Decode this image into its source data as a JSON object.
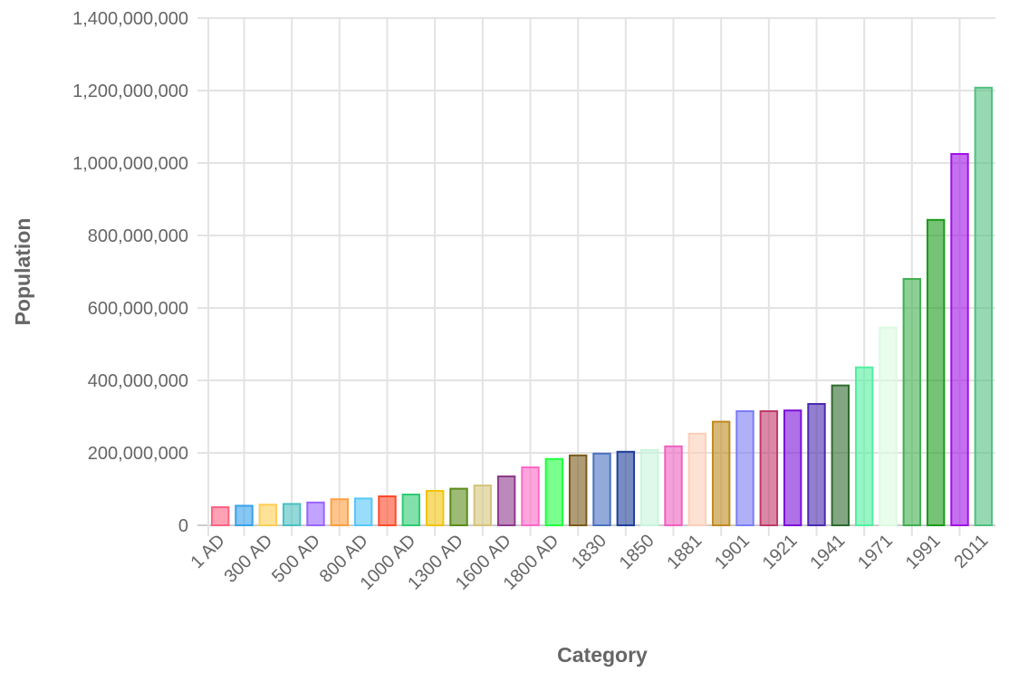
{
  "chart_data": {
    "type": "bar",
    "title": "",
    "xlabel": "Category",
    "ylabel": "Population",
    "ylim": [
      0,
      1400000000
    ],
    "y_ticks": [
      "0",
      "200,000,000",
      "400,000,000",
      "600,000,000",
      "800,000,000",
      "1,000,000,000",
      "1,200,000,000",
      "1,400,000,000"
    ],
    "y_tick_values": [
      0,
      200000000,
      400000000,
      600000000,
      800000000,
      1000000000,
      1200000000,
      1400000000
    ],
    "grid": true,
    "legend": "none",
    "categories": [
      "1 AD",
      "",
      "300 AD",
      "",
      "500 AD",
      "",
      "800 AD",
      "",
      "1000 AD",
      "",
      "1300 AD",
      "",
      "1600 AD",
      "",
      "1800 AD",
      "",
      "1830",
      "",
      "1850",
      "",
      "1881",
      "",
      "1901",
      "",
      "1921",
      "",
      "1941",
      "",
      "1971",
      "",
      "1991",
      "",
      "2011"
    ],
    "values": [
      50000000,
      54000000,
      57000000,
      59000000,
      63000000,
      72000000,
      74000000,
      80000000,
      85000000,
      95000000,
      101000000,
      110000000,
      135000000,
      160000000,
      183000000,
      193000000,
      198000000,
      203000000,
      208000000,
      218000000,
      253000000,
      286000000,
      315000000,
      315000000,
      317000000,
      335000000,
      386000000,
      436000000,
      546000000,
      680000000,
      843000000,
      1025000000,
      1208000000
    ],
    "colors": [
      "#ff6384",
      "#36a2eb",
      "#ffce56",
      "#4bc0c0",
      "#9966ff",
      "#ff9f40",
      "#57c7f7",
      "#ff4a2a",
      "#2ecc71",
      "#f1c40f",
      "#5b8c1a",
      "#d4c47c",
      "#8e3a8c",
      "#ff69c8",
      "#20ff40",
      "#7a5a1a",
      "#4a72c0",
      "#1f3f9a",
      "#c8f5dc",
      "#f060c0",
      "#fbcfb8",
      "#c08a20",
      "#7c7cf5",
      "#c03a6a",
      "#7a10d8",
      "#4a2ab0",
      "#2f6a2f",
      "#50f0a0",
      "#dcfadf",
      "#40b050",
      "#1a9a1a",
      "#a010e8",
      "#50c080"
    ]
  }
}
